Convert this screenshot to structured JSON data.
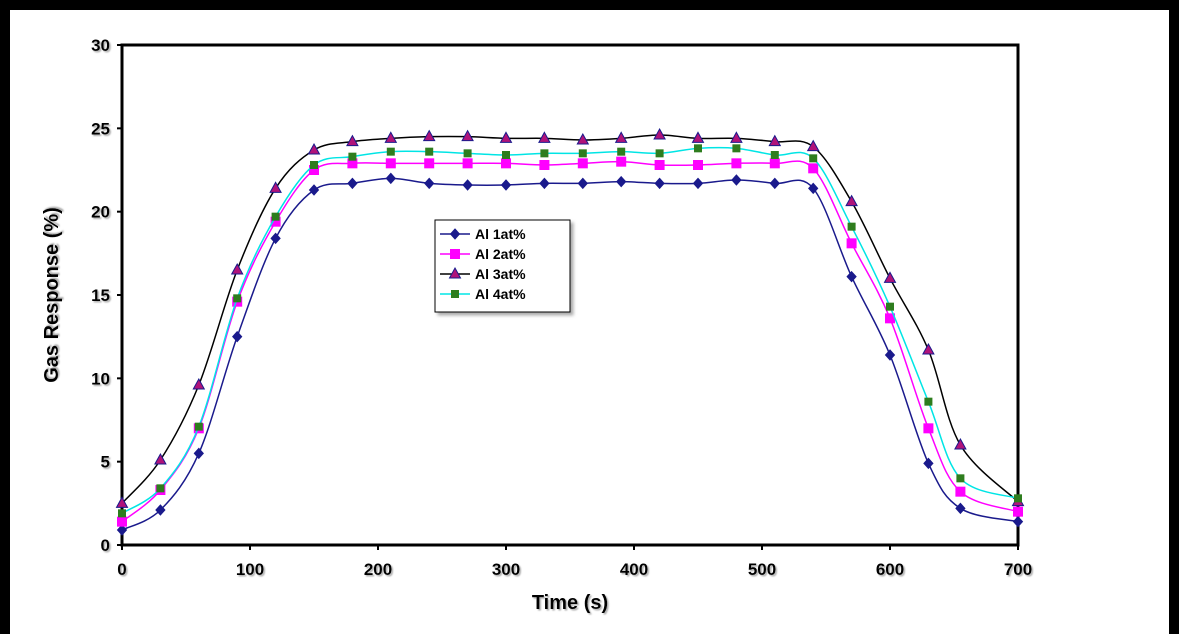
{
  "chart_data": {
    "type": "line",
    "title": "",
    "xlabel": "Time (s)",
    "ylabel": "Gas Response (%)",
    "xlim": [
      0,
      700
    ],
    "ylim": [
      0,
      30
    ],
    "xticks": [
      0,
      100,
      200,
      300,
      400,
      500,
      600,
      700
    ],
    "yticks": [
      0,
      5,
      10,
      15,
      20,
      25,
      30
    ],
    "grid": false,
    "legend_position": "center-left, inside plot",
    "x": [
      0,
      30,
      60,
      90,
      120,
      150,
      180,
      210,
      240,
      270,
      300,
      330,
      360,
      390,
      420,
      450,
      480,
      510,
      540,
      570,
      600,
      630,
      655,
      700
    ],
    "series": [
      {
        "name": "Al 1at%",
        "color": "#1a1a8c",
        "marker": "diamond",
        "values": [
          0.9,
          2.1,
          5.5,
          12.5,
          18.4,
          21.3,
          21.7,
          22.0,
          21.7,
          21.6,
          21.6,
          21.7,
          21.7,
          21.8,
          21.7,
          21.7,
          21.9,
          21.7,
          21.4,
          16.1,
          11.4,
          4.9,
          2.2,
          1.4
        ]
      },
      {
        "name": "Al 2at%",
        "color": "#ff00ff",
        "marker": "square",
        "values": [
          1.4,
          3.3,
          7.0,
          14.6,
          19.4,
          22.5,
          22.9,
          22.9,
          22.9,
          22.9,
          22.9,
          22.8,
          22.9,
          23.0,
          22.8,
          22.8,
          22.9,
          22.9,
          22.6,
          18.1,
          13.6,
          7.0,
          3.2,
          2.0
        ]
      },
      {
        "name": "Al 3at%",
        "color": "#000000",
        "marker": "triangle",
        "values": [
          2.5,
          5.1,
          9.6,
          16.5,
          21.4,
          23.7,
          24.2,
          24.4,
          24.5,
          24.5,
          24.4,
          24.4,
          24.3,
          24.4,
          24.6,
          24.4,
          24.4,
          24.2,
          23.9,
          20.6,
          16.0,
          11.7,
          6.0,
          2.6
        ]
      },
      {
        "name": "Al 4at%",
        "color": "#00e5e5",
        "markerColor": "#2e7d1e",
        "marker": "square-small",
        "values": [
          1.9,
          3.4,
          7.1,
          14.8,
          19.7,
          22.8,
          23.3,
          23.6,
          23.6,
          23.5,
          23.4,
          23.5,
          23.5,
          23.6,
          23.5,
          23.8,
          23.8,
          23.4,
          23.2,
          19.1,
          14.3,
          8.6,
          4.0,
          2.8
        ]
      }
    ]
  }
}
